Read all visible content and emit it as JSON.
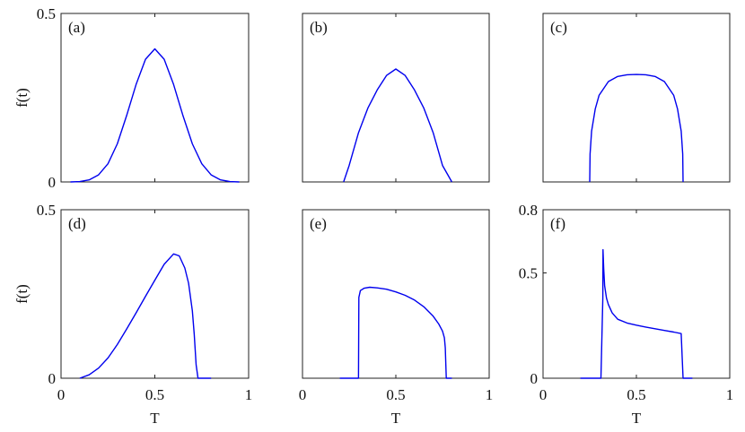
{
  "colors": {
    "curve": "#0000ee",
    "axes": "#222222"
  },
  "chart_data": [
    {
      "type": "line",
      "panel_label": "(a)",
      "ylabel": "f(t)",
      "xlabel": "",
      "xlim": [
        0,
        1
      ],
      "ylim": [
        0,
        0.5
      ],
      "xticks": [],
      "yticks": [
        0,
        0.5
      ],
      "ytick_labels": [
        "0",
        "0.5"
      ],
      "grid": false,
      "series": [
        {
          "x": [
            0.05,
            0.1,
            0.15,
            0.2,
            0.25,
            0.3,
            0.35,
            0.4,
            0.45,
            0.5,
            0.55,
            0.6,
            0.65,
            0.7,
            0.75,
            0.8,
            0.85,
            0.9,
            0.95
          ],
          "y": [
            0.0001,
            0.001,
            0.006,
            0.021,
            0.054,
            0.113,
            0.197,
            0.289,
            0.364,
            0.395,
            0.364,
            0.289,
            0.197,
            0.113,
            0.054,
            0.021,
            0.006,
            0.001,
            0.0001
          ]
        }
      ]
    },
    {
      "type": "line",
      "panel_label": "(b)",
      "ylabel": "",
      "xlabel": "",
      "xlim": [
        0,
        1
      ],
      "ylim": [
        0,
        0.5
      ],
      "xticks": [],
      "yticks": [],
      "ytick_labels": [],
      "grid": false,
      "series": [
        {
          "x": [
            0.22,
            0.25,
            0.3,
            0.35,
            0.4,
            0.45,
            0.5,
            0.55,
            0.6,
            0.65,
            0.7,
            0.75,
            0.8
          ],
          "y": [
            0.0,
            0.049,
            0.146,
            0.219,
            0.273,
            0.316,
            0.335,
            0.316,
            0.273,
            0.219,
            0.146,
            0.049,
            0.0
          ]
        }
      ]
    },
    {
      "type": "line",
      "panel_label": "(c)",
      "ylabel": "",
      "xlabel": "",
      "xlim": [
        0,
        1
      ],
      "ylim": [
        0,
        0.5
      ],
      "xticks": [],
      "yticks": [],
      "ytick_labels": [],
      "grid": false,
      "series": [
        {
          "x": [
            0.25,
            0.252,
            0.26,
            0.28,
            0.3,
            0.35,
            0.4,
            0.45,
            0.5,
            0.55,
            0.6,
            0.65,
            0.7,
            0.72,
            0.74,
            0.748,
            0.75
          ],
          "y": [
            0.0,
            0.083,
            0.151,
            0.217,
            0.257,
            0.298,
            0.313,
            0.318,
            0.319,
            0.318,
            0.313,
            0.298,
            0.257,
            0.217,
            0.151,
            0.083,
            0.0
          ]
        }
      ]
    },
    {
      "type": "line",
      "panel_label": "(d)",
      "ylabel": "f(t)",
      "xlabel": "T",
      "xlim": [
        0,
        1
      ],
      "ylim": [
        0,
        0.5
      ],
      "xticks": [
        0,
        0.5,
        1
      ],
      "xtick_labels": [
        "0",
        "0.5",
        "1"
      ],
      "yticks": [
        0,
        0.5
      ],
      "ytick_labels": [
        "0",
        "0.5"
      ],
      "grid": false,
      "series": [
        {
          "x": [
            0.1,
            0.15,
            0.2,
            0.25,
            0.3,
            0.35,
            0.4,
            0.45,
            0.5,
            0.55,
            0.6,
            0.63,
            0.66,
            0.68,
            0.7,
            0.71,
            0.72,
            0.73,
            0.75,
            0.8
          ],
          "y": [
            0.0,
            0.01,
            0.03,
            0.06,
            0.1,
            0.146,
            0.194,
            0.243,
            0.291,
            0.338,
            0.369,
            0.363,
            0.327,
            0.282,
            0.2,
            0.13,
            0.04,
            0.0,
            0.0,
            0.0
          ]
        }
      ]
    },
    {
      "type": "line",
      "panel_label": "(e)",
      "ylabel": "",
      "xlabel": "T",
      "xlim": [
        0,
        1
      ],
      "ylim": [
        0,
        0.5
      ],
      "xticks": [
        0,
        0.5,
        1
      ],
      "xtick_labels": [
        "0",
        "0.5",
        "1"
      ],
      "yticks": [],
      "ytick_labels": [],
      "grid": false,
      "series": [
        {
          "x": [
            0.2,
            0.3,
            0.302,
            0.31,
            0.33,
            0.36,
            0.4,
            0.45,
            0.5,
            0.55,
            0.6,
            0.65,
            0.7,
            0.73,
            0.75,
            0.76,
            0.765,
            0.768,
            0.77,
            0.8
          ],
          "y": [
            0.0,
            0.0,
            0.24,
            0.26,
            0.267,
            0.27,
            0.268,
            0.264,
            0.256,
            0.246,
            0.232,
            0.212,
            0.184,
            0.161,
            0.14,
            0.12,
            0.09,
            0.04,
            0.0,
            0.0
          ]
        }
      ]
    },
    {
      "type": "line",
      "panel_label": "(f)",
      "ylabel": "",
      "xlabel": "T",
      "xlim": [
        0,
        1
      ],
      "ylim": [
        0,
        0.8
      ],
      "xticks": [
        0,
        0.5,
        1
      ],
      "xtick_labels": [
        "0",
        "0.5",
        "1"
      ],
      "yticks": [
        0,
        0.5,
        0.8
      ],
      "ytick_labels": [
        "0",
        "0.5",
        "0.8"
      ],
      "grid": false,
      "series": [
        {
          "x": [
            0.2,
            0.31,
            0.32,
            0.321,
            0.325,
            0.33,
            0.34,
            0.35,
            0.37,
            0.4,
            0.45,
            0.5,
            0.55,
            0.6,
            0.65,
            0.7,
            0.74,
            0.745,
            0.75,
            0.8
          ],
          "y": [
            0.0,
            0.0,
            0.38,
            0.61,
            0.52,
            0.44,
            0.38,
            0.35,
            0.31,
            0.28,
            0.262,
            0.252,
            0.243,
            0.235,
            0.227,
            0.219,
            0.212,
            0.1,
            0.0,
            0.0
          ]
        }
      ]
    }
  ]
}
